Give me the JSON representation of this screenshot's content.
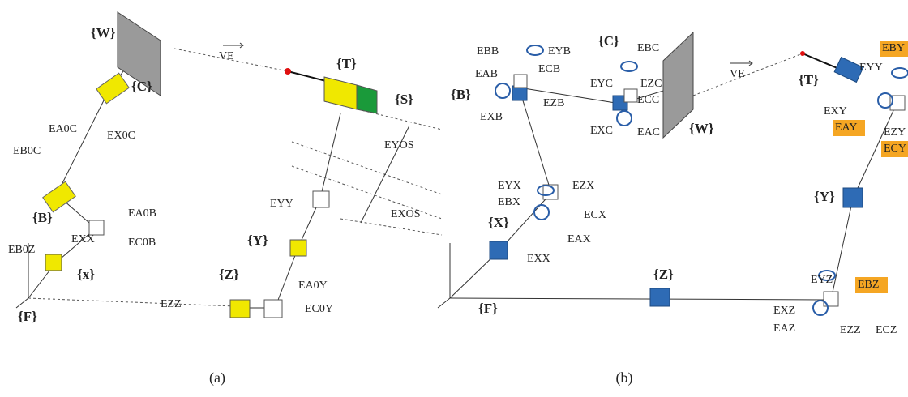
{
  "panel_a": {
    "caption": "(a)",
    "labels": [
      "{W}",
      "{C}",
      "EA0C",
      "EX0C",
      "EB0C",
      "{B}",
      "EA0B",
      "EXX",
      "EC0B",
      "EB0Z",
      "{x}",
      "{F}",
      "EZZ",
      "{Z}",
      "{Y}",
      "EYY",
      "EA0Y",
      "EC0Y",
      "VE",
      "{T}",
      "{S}",
      "EYOS",
      "EXOS"
    ]
  },
  "panel_b": {
    "caption": "(b)",
    "labels": [
      "EBB",
      "EYB",
      "{C}",
      "EBC",
      "ECB",
      "EAB",
      "{B}",
      "EXB",
      "EZB",
      "EYC",
      "EZC",
      "ECC",
      "EXC",
      "EAC",
      "{W}",
      "VE",
      "{T}",
      "EBY",
      "EYY",
      "EXY",
      "EAY",
      "EZY",
      "ECY",
      "EYX",
      "EBX",
      "EZX",
      "ECX",
      "EAX",
      "EXX",
      "{X}",
      "{Y}",
      "{Z}",
      "{F}",
      "EYZ",
      "EBZ",
      "EXZ",
      "EAZ",
      "EZZ",
      "ECZ"
    ]
  }
}
